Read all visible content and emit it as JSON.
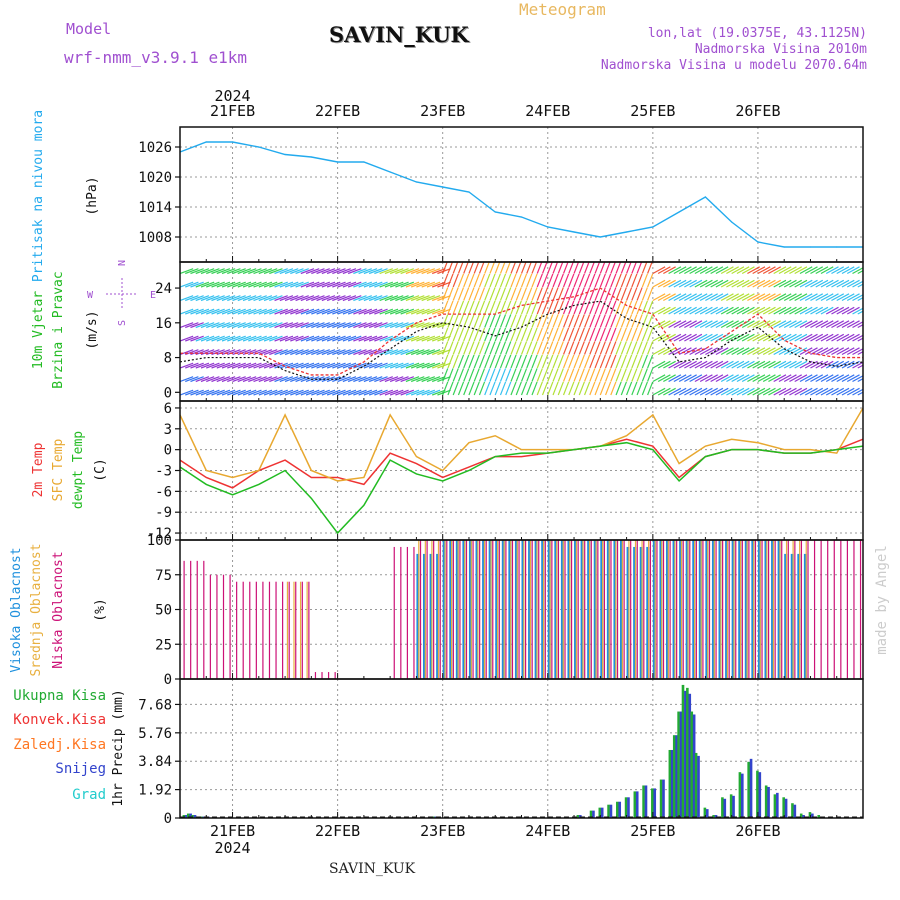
{
  "header": {
    "model_label": "Model",
    "model_name": "wrf-nmm_v3.9.1  e1km",
    "station": "SAVIN_KUK",
    "product": "Meteogram",
    "lonlat": "lon,lat (19.0375E, 43.1125N)",
    "elevation": "Nadmorska Visina 2010m",
    "model_elevation": "Nadmorska Visina u modelu 2070.64m"
  },
  "footer_station": "SAVIN_KUK",
  "watermark": "made by Angel",
  "colors": {
    "pressure": "#22aaee",
    "temp2m": "#ee3333",
    "sfc_temp": "#e8a830",
    "dewpt": "#22bb22",
    "high_cloud": "#1e90dd",
    "mid_cloud": "#e8b040",
    "low_cloud": "#cc1177",
    "total_precip": "#22aa33",
    "snow": "#3344cc",
    "conv_precip": "#ee3333",
    "frz_precip": "#ff7722",
    "graupel": "#22cccc",
    "model_purple": "#a050d0"
  },
  "chart_data": [
    {
      "type": "line",
      "panel": "pressure",
      "ylabel_lines": [
        "Pritisak na nivou mora",
        "(hPa)"
      ],
      "yticks": [
        1008,
        1014,
        1020,
        1026
      ],
      "ylim": [
        1003,
        1030
      ],
      "x_top_labels": [
        "21FEB",
        "22FEB",
        "23FEB",
        "24FEB",
        "25FEB",
        "26FEB"
      ],
      "x_top_year": "2024",
      "x_hours": [
        0,
        6,
        12,
        18,
        24,
        30,
        36,
        42,
        48,
        54,
        60,
        66,
        72,
        78,
        84,
        90,
        96,
        102,
        108,
        114,
        120,
        126,
        132,
        138,
        144,
        150,
        156
      ],
      "values": [
        1025,
        1027,
        1027,
        1026,
        1024.5,
        1024,
        1023,
        1023,
        1021,
        1019,
        1018,
        1017,
        1013,
        1012,
        1010,
        1009,
        1008,
        1009,
        1010,
        1013,
        1016,
        1011,
        1007,
        1006,
        1006,
        1006,
        1006
      ]
    },
    {
      "type": "line",
      "panel": "wind",
      "ylabel_lines": [
        "10m Vjetar",
        "Brzina i Pravac",
        "(m/s)"
      ],
      "compass": {
        "n": "N",
        "s": "S",
        "e": "E",
        "w": "W"
      },
      "yticks": [
        0,
        8,
        16,
        24
      ],
      "ylim": [
        -2,
        30
      ],
      "x_hours": [
        0,
        6,
        12,
        18,
        24,
        30,
        36,
        42,
        48,
        54,
        60,
        66,
        72,
        78,
        84,
        90,
        96,
        102,
        108,
        114,
        120,
        126,
        132,
        138,
        144,
        150,
        156
      ],
      "series": [
        {
          "name": "speed",
          "values": [
            7,
            8,
            8,
            8,
            5,
            3,
            3,
            6,
            10,
            14,
            16,
            15,
            13,
            15,
            18,
            20,
            21,
            17,
            15,
            7,
            8,
            12,
            15,
            10,
            7,
            6,
            7
          ]
        },
        {
          "name": "gust",
          "values": [
            9,
            9,
            9,
            9,
            6,
            4,
            4,
            7,
            12,
            16,
            18,
            18,
            18,
            20,
            21,
            22,
            24,
            20,
            18,
            9,
            10,
            14,
            18,
            12,
            9,
            8,
            8
          ]
        }
      ]
    },
    {
      "type": "line",
      "panel": "temperature",
      "ylabel_lines": [
        "2m Temp",
        "SFC Temp",
        "dewpt Temp",
        "(C)"
      ],
      "yticks": [
        -12,
        -9,
        -6,
        -3,
        0,
        3,
        6
      ],
      "ylim": [
        -13,
        7
      ],
      "x_hours": [
        0,
        6,
        12,
        18,
        24,
        30,
        36,
        42,
        48,
        54,
        60,
        66,
        72,
        78,
        84,
        90,
        96,
        102,
        108,
        114,
        120,
        126,
        132,
        138,
        144,
        150,
        156
      ],
      "series": [
        {
          "name": "2m Temp",
          "values": [
            -1.5,
            -4,
            -5.5,
            -3,
            -1.5,
            -4,
            -4,
            -5,
            -0.5,
            -2,
            -4,
            -2.5,
            -1,
            -1,
            -0.5,
            0,
            0.5,
            1.5,
            0.5,
            -4,
            -1,
            0,
            0,
            -0.5,
            -0.5,
            0,
            1.5
          ]
        },
        {
          "name": "SFC Temp",
          "values": [
            5,
            -3,
            -4,
            -3,
            5,
            -3,
            -4.5,
            -4,
            5,
            -1,
            -3,
            1,
            2,
            0,
            0,
            0,
            0.5,
            2,
            5,
            -2,
            0.5,
            1.5,
            1,
            0,
            0,
            -0.5,
            6
          ]
        },
        {
          "name": "dewpt Temp",
          "values": [
            -2.5,
            -5,
            -6.5,
            -5,
            -3,
            -7,
            -12,
            -8,
            -1.5,
            -3.5,
            -4.5,
            -3,
            -1,
            -0.5,
            -0.5,
            0,
            0.5,
            1,
            0,
            -4.5,
            -1,
            0,
            0,
            -0.5,
            -0.5,
            0,
            0.5
          ]
        }
      ]
    },
    {
      "type": "bar",
      "panel": "cloud",
      "ylabel_lines": [
        "Visoka Oblacnost",
        "Srednja Oblacnost",
        "Niska Oblacnost",
        "(%)"
      ],
      "yticks": [
        0,
        25,
        50,
        75,
        100
      ],
      "ylim": [
        0,
        100
      ],
      "x_hours": [
        0,
        6,
        12,
        18,
        24,
        30,
        36,
        42,
        48,
        54,
        60,
        66,
        72,
        78,
        84,
        90,
        96,
        102,
        108,
        114,
        120,
        126,
        132,
        138,
        144,
        150,
        156
      ],
      "series": [
        {
          "name": "Visoka Oblacnost",
          "values": [
            0,
            0,
            0,
            0,
            0,
            0,
            0,
            0,
            0,
            90,
            100,
            100,
            100,
            100,
            100,
            100,
            100,
            95,
            100,
            100,
            100,
            100,
            100,
            90,
            0,
            0,
            0
          ]
        },
        {
          "name": "Srednja Oblacnost",
          "values": [
            0,
            0,
            0,
            0,
            70,
            0,
            0,
            0,
            0,
            100,
            100,
            100,
            100,
            100,
            100,
            100,
            100,
            100,
            100,
            100,
            100,
            100,
            100,
            100,
            0,
            0,
            0
          ]
        },
        {
          "name": "Niska Oblacnost",
          "values": [
            85,
            75,
            70,
            70,
            70,
            5,
            0,
            0,
            95,
            100,
            100,
            100,
            100,
            100,
            100,
            100,
            100,
            100,
            100,
            100,
            100,
            100,
            100,
            100,
            100,
            100,
            100
          ]
        }
      ]
    },
    {
      "type": "bar",
      "panel": "precip",
      "ylabel": "1hr Precip (mm)",
      "legend": [
        "Ukupna Kisa",
        "Konvek.Kisa",
        "Zaledj.Kisa",
        "Snijeg",
        "Grad"
      ],
      "yticks": [
        0,
        1.92,
        3.84,
        5.76,
        7.68
      ],
      "ytick_labels": [
        "0",
        "1.92",
        "3.84",
        "5.76",
        "7.68"
      ],
      "ylim": [
        0,
        9.4
      ],
      "x_bottom_labels": [
        "21FEB",
        "22FEB",
        "23FEB",
        "24FEB",
        "25FEB",
        "26FEB"
      ],
      "x_bottom_year": "2024",
      "x_hours": [
        1,
        2,
        3,
        4,
        5,
        6,
        58,
        91,
        94,
        96,
        98,
        100,
        102,
        104,
        106,
        108,
        110,
        112,
        113,
        114,
        115,
        116,
        117,
        118,
        120,
        122,
        124,
        126,
        128,
        130,
        132,
        134,
        136,
        138,
        140,
        142,
        144,
        146
      ],
      "series": [
        {
          "name": "Ukupna Kisa",
          "values": [
            0.2,
            0.3,
            0.2,
            0.1,
            0.1,
            0.1,
            0.1,
            0.2,
            0.5,
            0.7,
            0.9,
            1.1,
            1.4,
            1.8,
            2.2,
            2.0,
            2.6,
            4.6,
            5.6,
            7.2,
            9.0,
            8.8,
            7.2,
            4.4,
            0.7,
            0.2,
            1.4,
            1.6,
            3.1,
            3.8,
            3.2,
            2.2,
            1.6,
            1.4,
            1.0,
            0.3,
            0.4,
            0.2
          ]
        },
        {
          "name": "Snijeg",
          "values": [
            0.2,
            0.3,
            0.2,
            0.1,
            0.1,
            0.1,
            0.1,
            0.2,
            0.5,
            0.7,
            0.9,
            1.1,
            1.4,
            1.8,
            2.2,
            2.0,
            2.6,
            4.6,
            5.6,
            7.2,
            8.6,
            8.4,
            7.0,
            4.2,
            0.6,
            0.2,
            1.3,
            1.5,
            3.0,
            4.0,
            3.1,
            2.1,
            1.7,
            1.3,
            0.9,
            0.2,
            0.3,
            0.1
          ]
        }
      ]
    }
  ]
}
